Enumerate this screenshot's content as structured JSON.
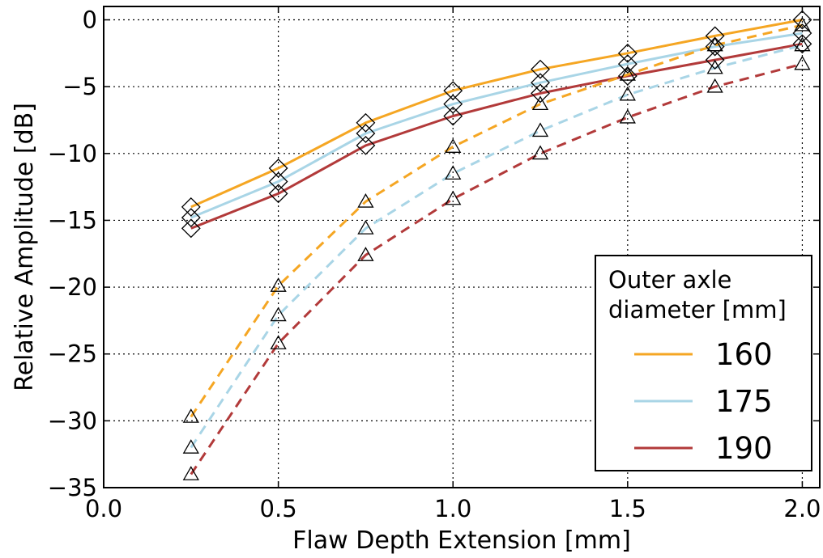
{
  "chart_data": {
    "type": "line",
    "title": "",
    "xlabel": "Flaw Depth Extension [mm]",
    "ylabel": "Relative Amplitude [dB]",
    "xlim": [
      0.0,
      2.05
    ],
    "ylim": [
      -35,
      1
    ],
    "xticks": [
      0.0,
      0.5,
      1.0,
      1.5,
      2.0
    ],
    "xtick_labels": [
      "0.0",
      "0.5",
      "1.0",
      "1.5",
      "2.0"
    ],
    "yticks": [
      0,
      -5,
      -10,
      -15,
      -20,
      -25,
      -30,
      -35
    ],
    "ytick_labels": [
      "0",
      "−5",
      "−10",
      "−15",
      "−20",
      "−25",
      "−30",
      "−35"
    ],
    "grid": true,
    "legend": {
      "title_lines": [
        "Outer axle",
        "diameter [mm]"
      ],
      "placement": "lower-right",
      "entries": [
        "160",
        "175",
        "190"
      ]
    },
    "x": [
      0.25,
      0.5,
      0.75,
      1.0,
      1.25,
      1.5,
      1.75,
      2.0
    ],
    "series": [
      {
        "name": "160",
        "style": "solid",
        "marker": "diamond",
        "color": "#f5a623",
        "values": [
          -14.0,
          -11.1,
          -7.7,
          -5.3,
          -3.7,
          -2.5,
          -1.2,
          0.0
        ]
      },
      {
        "name": "175",
        "style": "solid",
        "marker": "diamond",
        "color": "#a9d5e6",
        "values": [
          -14.8,
          -12.1,
          -8.5,
          -6.3,
          -4.7,
          -3.3,
          -2.0,
          -1.0
        ]
      },
      {
        "name": "190",
        "style": "solid",
        "marker": "diamond",
        "color": "#b23a3a",
        "values": [
          -15.6,
          -13.0,
          -9.4,
          -7.2,
          -5.5,
          -4.2,
          -3.0,
          -1.8
        ]
      },
      {
        "name": "160",
        "style": "dashed",
        "marker": "triangle",
        "color": "#f5a623",
        "values": [
          -29.7,
          -19.9,
          -13.6,
          -9.5,
          -6.3,
          -4.1,
          -1.9,
          -0.4
        ]
      },
      {
        "name": "175",
        "style": "dashed",
        "marker": "triangle",
        "color": "#a9d5e6",
        "values": [
          -32.0,
          -22.1,
          -15.6,
          -11.5,
          -8.3,
          -5.6,
          -3.6,
          -1.9
        ]
      },
      {
        "name": "190",
        "style": "dashed",
        "marker": "triangle",
        "color": "#b23a3a",
        "values": [
          -34.0,
          -24.2,
          -17.6,
          -13.4,
          -10.0,
          -7.3,
          -5.0,
          -3.3
        ]
      }
    ]
  }
}
